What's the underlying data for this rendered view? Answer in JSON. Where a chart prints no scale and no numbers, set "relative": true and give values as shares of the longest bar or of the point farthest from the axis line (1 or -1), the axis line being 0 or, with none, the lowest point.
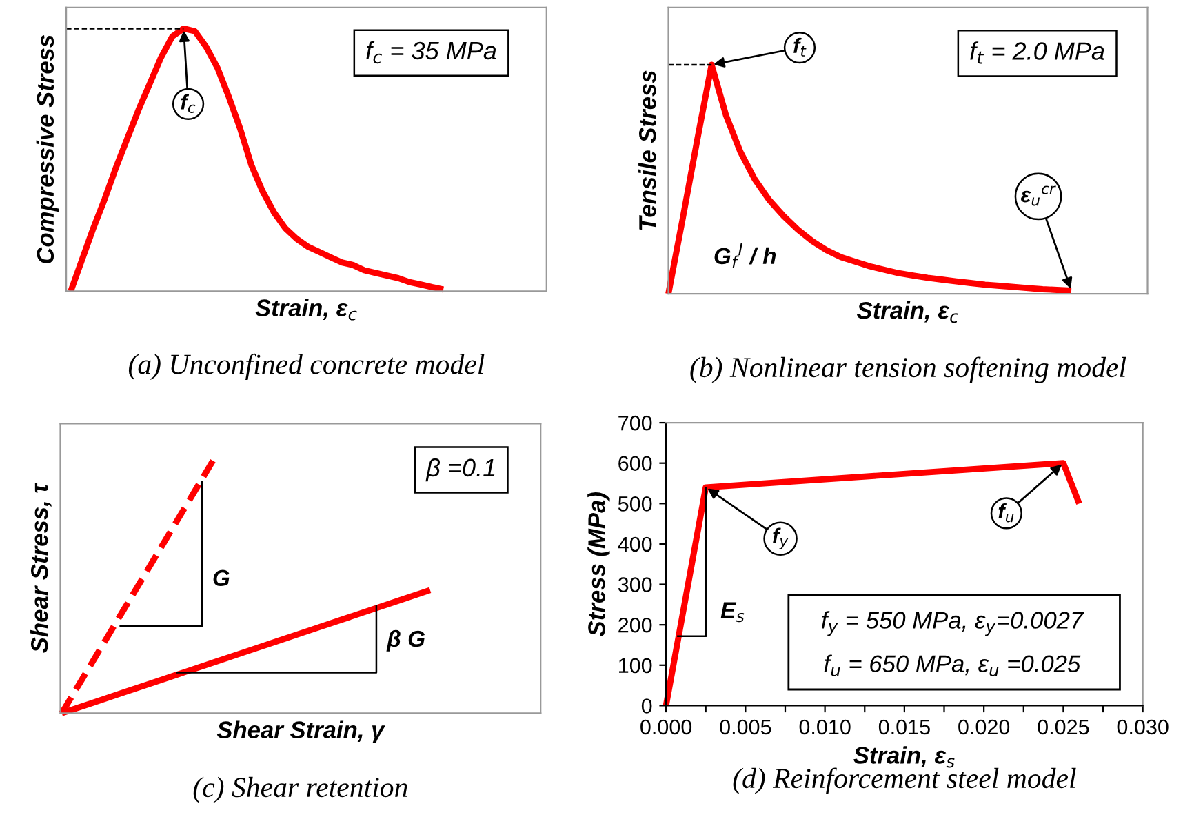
{
  "chart_data": [
    {
      "type": "line",
      "relative": true,
      "title": "(a) Unconfined concrete model",
      "xlabel": "Strain, ε$_{c}$",
      "ylabel": "Compressive Stress",
      "categories": [
        null,
        null,
        null,
        null,
        null,
        null,
        null,
        null,
        null,
        null,
        null,
        null,
        null,
        null,
        null,
        null,
        null,
        null,
        null,
        null,
        null,
        null,
        null,
        null,
        null,
        null,
        null,
        null,
        null,
        null,
        null,
        null,
        null,
        null
      ],
      "series": [
        {
          "color": "#ff0000",
          "values": [
            0.0,
            0.12,
            0.24,
            0.35,
            0.47,
            0.58,
            0.69,
            0.79,
            0.89,
            0.97,
            1.0,
            0.99,
            0.93,
            0.85,
            0.74,
            0.62,
            0.48,
            0.38,
            0.3,
            0.24,
            0.2,
            0.17,
            0.15,
            0.13,
            0.11,
            0.1,
            0.08,
            0.07,
            0.06,
            0.05,
            0.035,
            0.026,
            0.016,
            0.007
          ]
        }
      ],
      "ref_lines": [
        {
          "axis": "y",
          "value": 1,
          "line_style": "dashed",
          "color": "#000000"
        }
      ],
      "annotations": [
        "f$_{c}$",
        "f$_{c}$ = 35 MPa"
      ],
      "marker": "none",
      "line_style": "solid"
    },
    {
      "type": "line",
      "relative": true,
      "title": "(b) Nonlinear tension softening model",
      "xlabel": "Strain, ε$_{c}$",
      "ylabel": "Tensile Stress",
      "categories": [
        null,
        null,
        null,
        null,
        null,
        null,
        null,
        null,
        null,
        null,
        null,
        null,
        null,
        null,
        null,
        null,
        null,
        null,
        null,
        null,
        null,
        null,
        null,
        null,
        null,
        null,
        null,
        null,
        null
      ],
      "series": [
        {
          "color": "#ff0000",
          "values": [
            0.0,
            0.33,
            0.67,
            1.0,
            0.78,
            0.62,
            0.5,
            0.41,
            0.34,
            0.28,
            0.23,
            0.19,
            0.16,
            0.14,
            0.12,
            0.105,
            0.09,
            0.08,
            0.07,
            0.062,
            0.054,
            0.047,
            0.04,
            0.035,
            0.03,
            0.025,
            0.02,
            0.017,
            0.014
          ]
        }
      ],
      "ref_lines": [
        {
          "axis": "y",
          "value": 1,
          "line_style": "dashed",
          "color": "#000000"
        }
      ],
      "annotations": [
        "f$_{t}$",
        "ε$_{u}$$^{cr}$",
        "G$_{f}$$^{I}$ / h",
        "f$_{t}$ = 2.0 MPa"
      ],
      "marker": "none",
      "line_style": "solid"
    },
    {
      "type": "line",
      "relative": true,
      "title": "(c) Shear retention",
      "xlabel": "Shear Strain, γ",
      "ylabel": "Shear Stress, τ",
      "categories": [
        null,
        null,
        null,
        null,
        null,
        null,
        null,
        null,
        null,
        null,
        null,
        null,
        null
      ],
      "series": [
        {
          "color": "#ff0000",
          "line_style": "dashed",
          "values": [
            0,
            0.2,
            0.4,
            0.6,
            0.8,
            1.0,
            null,
            null,
            null,
            null,
            null,
            null,
            null
          ]
        },
        {
          "color": "#ff0000",
          "line_style": "solid",
          "values": [
            0,
            0.04,
            0.08,
            0.12,
            0.16,
            0.2,
            0.24,
            0.28,
            0.32,
            0.36,
            0.4,
            0.44,
            0.48
          ]
        }
      ],
      "annotations": [
        "β =0.1",
        "G",
        "β G"
      ],
      "marker": "none"
    },
    {
      "type": "line",
      "title": "(d) Reinforcement steel model",
      "xlabel": "Strain, ε$_{s}$",
      "ylabel": "Stress (MPa)",
      "x": [
        0,
        0.0025,
        0.025,
        0.026
      ],
      "series": [
        {
          "color": "#ff0000",
          "values": [
            0,
            540,
            600,
            500
          ]
        }
      ],
      "xlim": [
        0,
        0.03
      ],
      "ylim": [
        0,
        700
      ],
      "xticks": [
        {
          "value": 0,
          "label": "0.000"
        },
        {
          "value": 0.0025,
          "label": null
        },
        {
          "value": 0.005,
          "label": "0.005"
        },
        {
          "value": 0.0075,
          "label": null
        },
        {
          "value": 0.01,
          "label": "0.010"
        },
        {
          "value": 0.0125,
          "label": null
        },
        {
          "value": 0.015,
          "label": "0.015"
        },
        {
          "value": 0.0175,
          "label": null
        },
        {
          "value": 0.02,
          "label": "0.020"
        },
        {
          "value": 0.0225,
          "label": null
        },
        {
          "value": 0.025,
          "label": "0.025"
        },
        {
          "value": 0.0275,
          "label": null
        },
        {
          "value": 0.03,
          "label": "0.030"
        }
      ],
      "yticks": [
        0,
        100,
        200,
        300,
        400,
        500,
        600,
        700
      ],
      "annotations": [
        {
          "text": "f$_{y}$",
          "x": 0.0025,
          "y": 540
        },
        {
          "text": "f$_{u}$",
          "x": 0.025,
          "y": 600
        },
        "E$_{s}$",
        "f$_{y}$ = 550 MPa, ε$_{y}$=0.0027",
        "f$_{u}$ = 650 MPa, ε$_{u}$ =0.025"
      ],
      "marker": "none",
      "line_style": "solid"
    }
  ]
}
